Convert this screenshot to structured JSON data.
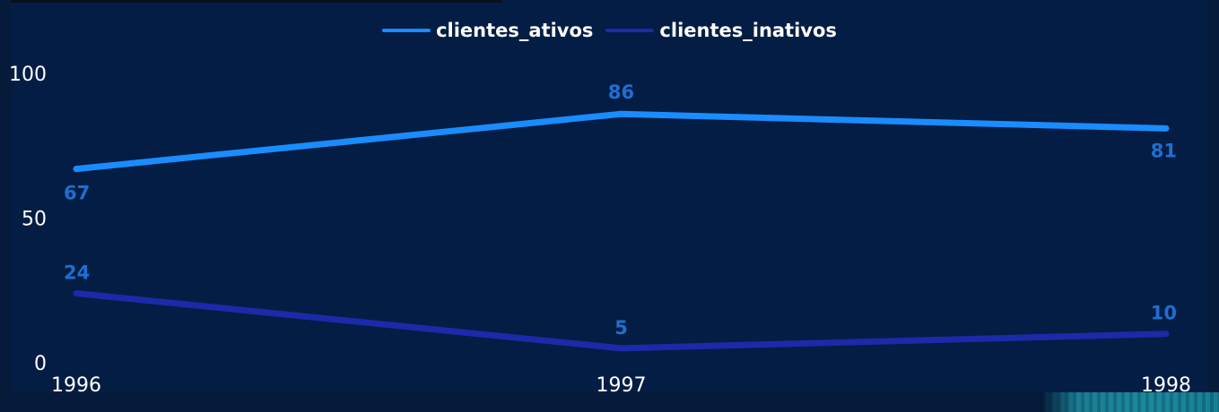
{
  "colors": {
    "background": "#041d44",
    "series_ativos": "#1a8cff",
    "series_inativos": "#1b2aa8",
    "data_label": "#1f6fd0",
    "axis_text": "#ffffff"
  },
  "chart_data": {
    "type": "line",
    "x": [
      "1996",
      "1997",
      "1998"
    ],
    "series": [
      {
        "name": "clientes_ativos",
        "values": [
          67,
          86,
          81
        ]
      },
      {
        "name": "clientes_inativos",
        "values": [
          24,
          5,
          10
        ]
      }
    ],
    "ylim": [
      0,
      100
    ],
    "yticks": [
      "0",
      "50",
      "100"
    ],
    "legend": "top-center",
    "grid": false,
    "data_labels": true
  }
}
